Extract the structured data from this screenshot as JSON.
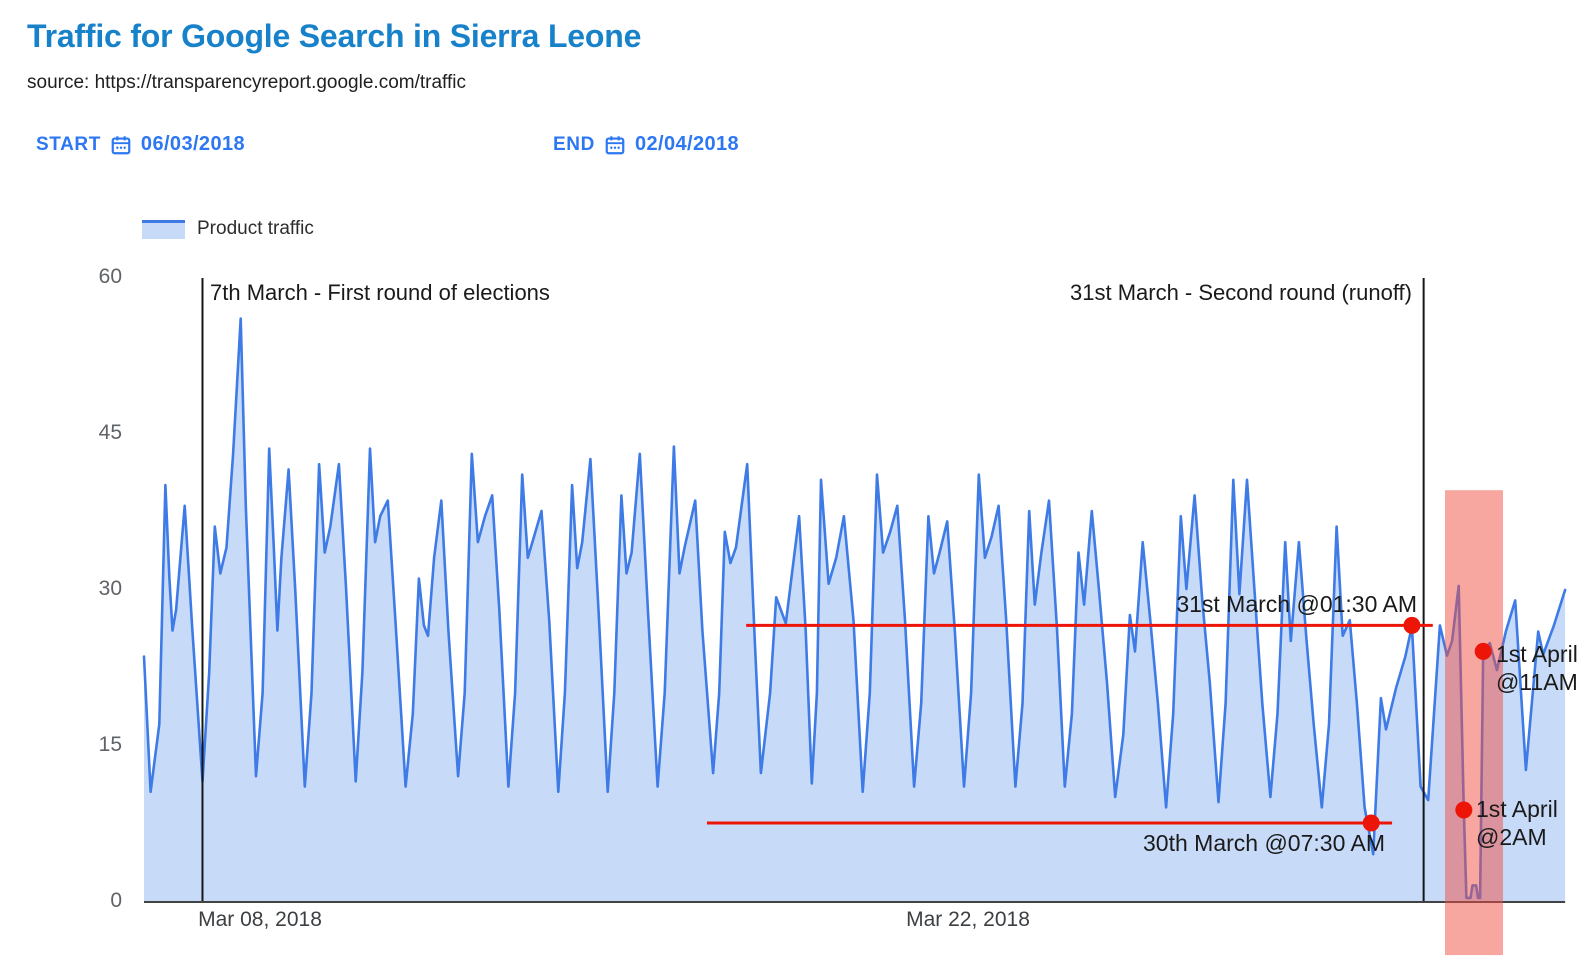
{
  "header": {
    "title": "Traffic for Google Search in Sierra Leone",
    "source": "source: https://transparencyreport.google.com/traffic"
  },
  "controls": {
    "start_label": "START",
    "start_date": "06/03/2018",
    "end_label": "END",
    "end_date": "02/04/2018"
  },
  "legend": {
    "label": "Product traffic"
  },
  "colors": {
    "title_blue": "#1782c9",
    "control_blue": "#2d78f2",
    "line_blue": "#3e7be6",
    "area_fill": "#c7dbf8",
    "annotation_red": "#ec1508",
    "event_line_black": "#161616",
    "axis_gray": "#424242",
    "shutdown_band_pink": "rgba(240,77,66,0.5)"
  },
  "chart_data": {
    "type": "area",
    "title": "Traffic for Google Search in Sierra Leone",
    "xlabel": "",
    "ylabel": "",
    "x_unit": "days since 06 Mar 2018 00:00",
    "x_range_days": [
      0,
      27.92
    ],
    "ylim": [
      0,
      60
    ],
    "grid": false,
    "legend_position": "top-left",
    "y_ticks": [
      60,
      45,
      30,
      15,
      0
    ],
    "x_tick_labels": [
      {
        "label": "Mar 08, 2018",
        "day": 2.28
      },
      {
        "label": "Mar 22, 2018",
        "day": 16.2
      }
    ],
    "series": [
      {
        "name": "Product traffic",
        "color": "#3e7be6",
        "fill": "#c7dbf8",
        "points": [
          [
            0,
            23.5
          ],
          [
            0.13,
            10.5
          ],
          [
            0.3,
            17
          ],
          [
            0.42,
            40
          ],
          [
            0.5,
            31
          ],
          [
            0.56,
            26
          ],
          [
            0.63,
            28
          ],
          [
            0.8,
            38
          ],
          [
            0.95,
            26
          ],
          [
            1.15,
            11.5
          ],
          [
            1.28,
            22
          ],
          [
            1.39,
            36
          ],
          [
            1.5,
            31.5
          ],
          [
            1.62,
            34
          ],
          [
            1.75,
            43
          ],
          [
            1.9,
            56
          ],
          [
            2.0,
            38
          ],
          [
            2.2,
            12
          ],
          [
            2.33,
            20
          ],
          [
            2.46,
            43.5
          ],
          [
            2.55,
            34
          ],
          [
            2.62,
            26
          ],
          [
            2.7,
            33
          ],
          [
            2.84,
            41.5
          ],
          [
            2.97,
            30
          ],
          [
            3.16,
            11
          ],
          [
            3.29,
            20
          ],
          [
            3.44,
            42
          ],
          [
            3.55,
            33.5
          ],
          [
            3.66,
            36
          ],
          [
            3.83,
            42
          ],
          [
            3.97,
            30
          ],
          [
            4.16,
            11.5
          ],
          [
            4.29,
            22
          ],
          [
            4.44,
            43.5
          ],
          [
            4.54,
            34.5
          ],
          [
            4.64,
            37
          ],
          [
            4.79,
            38.5
          ],
          [
            4.94,
            27
          ],
          [
            5.14,
            11
          ],
          [
            5.28,
            18
          ],
          [
            5.4,
            31
          ],
          [
            5.5,
            26.5
          ],
          [
            5.58,
            25.5
          ],
          [
            5.7,
            33
          ],
          [
            5.84,
            38.5
          ],
          [
            5.98,
            26
          ],
          [
            6.17,
            12
          ],
          [
            6.3,
            20
          ],
          [
            6.44,
            43
          ],
          [
            6.56,
            34.5
          ],
          [
            6.7,
            37
          ],
          [
            6.84,
            39
          ],
          [
            6.98,
            28
          ],
          [
            7.16,
            11
          ],
          [
            7.29,
            20
          ],
          [
            7.43,
            41
          ],
          [
            7.54,
            33
          ],
          [
            7.66,
            35
          ],
          [
            7.81,
            37.5
          ],
          [
            7.96,
            27
          ],
          [
            8.14,
            10.5
          ],
          [
            8.27,
            20
          ],
          [
            8.41,
            40
          ],
          [
            8.51,
            32
          ],
          [
            8.61,
            34.5
          ],
          [
            8.77,
            42.5
          ],
          [
            8.93,
            28
          ],
          [
            9.11,
            10.5
          ],
          [
            9.24,
            20
          ],
          [
            9.38,
            39
          ],
          [
            9.48,
            31.5
          ],
          [
            9.58,
            33.5
          ],
          [
            9.74,
            43
          ],
          [
            9.9,
            28
          ],
          [
            10.09,
            11
          ],
          [
            10.23,
            20
          ],
          [
            10.41,
            43.7
          ],
          [
            10.52,
            31.5
          ],
          [
            10.62,
            34
          ],
          [
            10.83,
            38.5
          ],
          [
            10.97,
            26
          ],
          [
            11.18,
            12.3
          ],
          [
            11.3,
            20
          ],
          [
            11.41,
            35.5
          ],
          [
            11.52,
            32.5
          ],
          [
            11.63,
            34
          ],
          [
            11.85,
            42
          ],
          [
            12.0,
            25
          ],
          [
            12.12,
            12.3
          ],
          [
            12.3,
            20
          ],
          [
            12.42,
            29.2
          ],
          [
            12.61,
            26.7
          ],
          [
            12.87,
            37
          ],
          [
            13.0,
            26
          ],
          [
            13.12,
            11.3
          ],
          [
            13.22,
            20
          ],
          [
            13.3,
            40.5
          ],
          [
            13.45,
            30.5
          ],
          [
            13.6,
            33
          ],
          [
            13.75,
            37
          ],
          [
            13.94,
            27
          ],
          [
            14.12,
            10.5
          ],
          [
            14.26,
            20
          ],
          [
            14.4,
            41
          ],
          [
            14.52,
            33.5
          ],
          [
            14.66,
            35.5
          ],
          [
            14.8,
            38
          ],
          [
            14.95,
            27
          ],
          [
            15.13,
            11
          ],
          [
            15.27,
            19
          ],
          [
            15.41,
            37
          ],
          [
            15.52,
            31.5
          ],
          [
            15.63,
            33.5
          ],
          [
            15.78,
            36.5
          ],
          [
            15.93,
            26
          ],
          [
            16.11,
            11
          ],
          [
            16.25,
            20
          ],
          [
            16.4,
            41
          ],
          [
            16.52,
            33
          ],
          [
            16.65,
            35
          ],
          [
            16.79,
            38
          ],
          [
            16.94,
            27
          ],
          [
            17.12,
            11
          ],
          [
            17.26,
            19
          ],
          [
            17.39,
            37.5
          ],
          [
            17.5,
            28.5
          ],
          [
            17.63,
            33.5
          ],
          [
            17.78,
            38.5
          ],
          [
            17.94,
            26
          ],
          [
            18.09,
            11
          ],
          [
            18.23,
            18
          ],
          [
            18.36,
            33.5
          ],
          [
            18.47,
            28.5
          ],
          [
            18.62,
            37.5
          ],
          [
            18.76,
            30
          ],
          [
            18.92,
            21
          ],
          [
            19.08,
            10
          ],
          [
            19.24,
            16
          ],
          [
            19.37,
            27.5
          ],
          [
            19.47,
            24
          ],
          [
            19.62,
            34.5
          ],
          [
            19.77,
            27
          ],
          [
            19.92,
            19
          ],
          [
            20.08,
            9
          ],
          [
            20.22,
            18
          ],
          [
            20.37,
            37
          ],
          [
            20.48,
            30
          ],
          [
            20.64,
            39
          ],
          [
            20.79,
            29
          ],
          [
            20.94,
            21
          ],
          [
            21.11,
            9.5
          ],
          [
            21.25,
            19
          ],
          [
            21.4,
            40.5
          ],
          [
            21.52,
            29.5
          ],
          [
            21.67,
            40.5
          ],
          [
            21.83,
            29
          ],
          [
            21.97,
            19
          ],
          [
            22.13,
            10
          ],
          [
            22.27,
            18
          ],
          [
            22.42,
            34.5
          ],
          [
            22.53,
            25
          ],
          [
            22.69,
            34.5
          ],
          [
            22.84,
            25
          ],
          [
            22.98,
            17
          ],
          [
            23.14,
            9
          ],
          [
            23.28,
            17
          ],
          [
            23.43,
            36
          ],
          [
            23.55,
            25.5
          ],
          [
            23.69,
            27
          ],
          [
            23.83,
            19
          ],
          [
            23.98,
            9
          ],
          [
            24.15,
            4.5
          ],
          [
            24.3,
            19.5
          ],
          [
            24.4,
            16.5
          ],
          [
            24.6,
            20.5
          ],
          [
            24.78,
            23.5
          ],
          [
            24.91,
            26.4
          ],
          [
            25.08,
            11
          ],
          [
            25.23,
            9.7
          ],
          [
            25.46,
            26.5
          ],
          [
            25.6,
            23.6
          ],
          [
            25.7,
            25
          ],
          [
            25.83,
            30.3
          ],
          [
            25.93,
            8.7
          ],
          [
            25.98,
            0.3
          ],
          [
            26.06,
            0.3
          ],
          [
            26.1,
            1.5
          ],
          [
            26.17,
            1.5
          ],
          [
            26.21,
            0.3
          ],
          [
            26.25,
            0.3
          ],
          [
            26.31,
            24
          ],
          [
            26.44,
            24.8
          ],
          [
            26.58,
            22.2
          ],
          [
            26.76,
            26
          ],
          [
            26.94,
            28.9
          ],
          [
            27.15,
            12.6
          ],
          [
            27.39,
            25.9
          ],
          [
            27.49,
            23.7
          ],
          [
            27.7,
            26.5
          ],
          [
            27.92,
            29.9
          ]
        ]
      }
    ],
    "annotations": {
      "vlines": [
        {
          "day": 1.149,
          "label": "7th March - First round of elections"
        },
        {
          "day": 25.14,
          "label": "31st March - Second round (runoff)"
        }
      ],
      "shutdown_band": {
        "day_start": 25.56,
        "day_end": 26.7,
        "v_top": 39.5,
        "v_bottom": -5.2
      },
      "red_lines": [
        {
          "label": "31st March @01:30 AM",
          "value": 26.5,
          "day_start": 11.83,
          "day_end": 25.32,
          "dot_day": 24.91
        },
        {
          "label": "30th March @07:30 AM",
          "value": 7.5,
          "day_start": 11.06,
          "day_end": 24.52,
          "dot_day": 24.11
        }
      ],
      "dots": [
        {
          "label_line1": "1st April",
          "label_line2": "@11AM",
          "day": 26.31,
          "value": 24
        },
        {
          "label_line1": "1st April",
          "label_line2": "@2AM",
          "day": 25.93,
          "value": 8.75
        }
      ]
    }
  }
}
